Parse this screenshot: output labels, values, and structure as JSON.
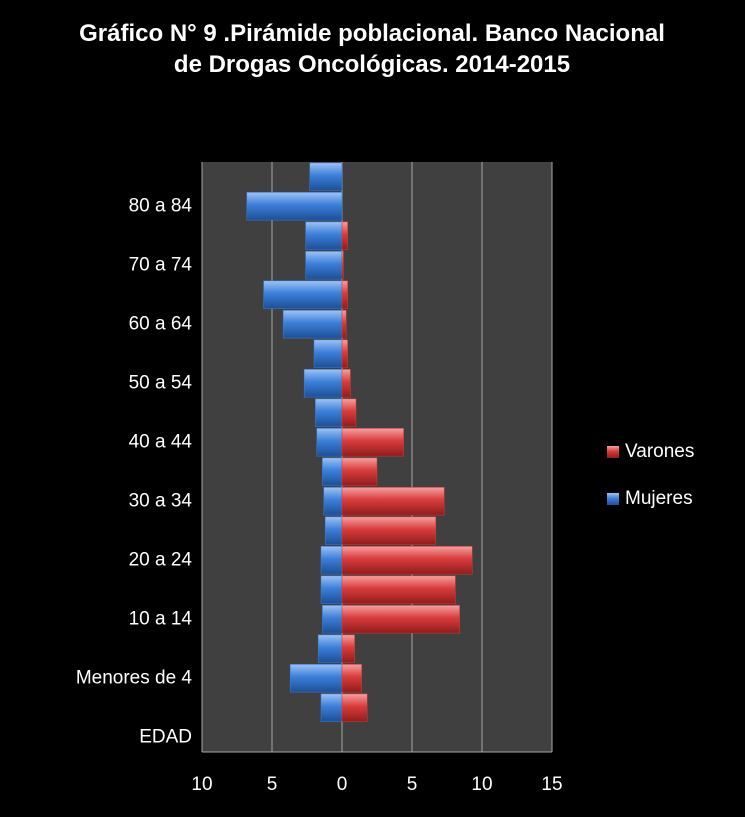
{
  "chart_data": {
    "type": "bar",
    "orientation": "horizontal",
    "stacked": false,
    "title": "Gráfico N° 9 .Pirámide poblacional. Banco Nacional de Drogas Oncológicas. 2014-2015",
    "categories": [
      "EDAD",
      null,
      "Menores de 4",
      null,
      "10 a 14",
      null,
      "20 a 24",
      null,
      "30 a 34",
      null,
      "40 a 44",
      null,
      "50 a 54",
      null,
      "60 a 64",
      null,
      "70 a 74",
      null,
      "80 a 84",
      null
    ],
    "series": [
      {
        "name": "Mujeres",
        "color": "#3b7fd9",
        "values": [
          null,
          -1.5,
          -3.7,
          -1.7,
          -1.4,
          -1.5,
          -1.5,
          -1.2,
          -1.3,
          -1.4,
          -1.8,
          -1.9,
          -2.7,
          -2.0,
          -4.2,
          -5.6,
          -2.6,
          -2.6,
          -6.8,
          -2.3
        ]
      },
      {
        "name": "Varones",
        "color": "#d93b3b",
        "values": [
          null,
          1.8,
          1.4,
          0.9,
          8.4,
          8.1,
          9.3,
          6.7,
          7.3,
          2.5,
          4.4,
          1.0,
          0.6,
          0.4,
          0.3,
          0.4,
          0.1,
          0.4,
          0,
          0
        ]
      }
    ],
    "xlim": [
      -10,
      15
    ],
    "xticks": [
      {
        "value": -10,
        "label": "10"
      },
      {
        "value": -5,
        "label": "5"
      },
      0,
      5,
      10,
      15
    ],
    "grid": true,
    "legend": "right"
  }
}
